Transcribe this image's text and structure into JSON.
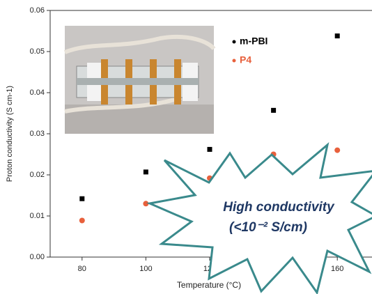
{
  "chart_data": {
    "type": "scatter",
    "x_label": "Temperature (°C)",
    "y_label": "Proton conductivity (S cm-1)",
    "x": [
      80,
      100,
      120,
      140,
      160
    ],
    "series": [
      {
        "name": "m-PBI",
        "color": "#000000",
        "marker": "square",
        "values": [
          0.0142,
          0.0207,
          0.0262,
          0.0357,
          0.0538
        ]
      },
      {
        "name": "P4",
        "color": "#e8603c",
        "marker": "circle",
        "values": [
          0.0089,
          0.013,
          0.0192,
          0.025,
          0.026
        ]
      }
    ],
    "xlim": [
      70,
      170
    ],
    "xticks": [
      80,
      100,
      120,
      140,
      160
    ],
    "ylim": [
      0,
      0.06
    ],
    "yticks": [
      {
        "value": 0,
        "label": "0.00"
      },
      {
        "value": 0.01,
        "label": "0.01"
      },
      {
        "value": 0.02,
        "label": "0.02"
      },
      {
        "value": 0.03,
        "label": "0.03"
      },
      {
        "value": 0.04,
        "label": "0.04"
      },
      {
        "value": 0.05,
        "label": "0.05"
      },
      {
        "value": 0.06,
        "label": "0.06"
      }
    ],
    "annotations": [
      "High conductivity",
      "(<10⁻² S/cm)"
    ]
  }
}
